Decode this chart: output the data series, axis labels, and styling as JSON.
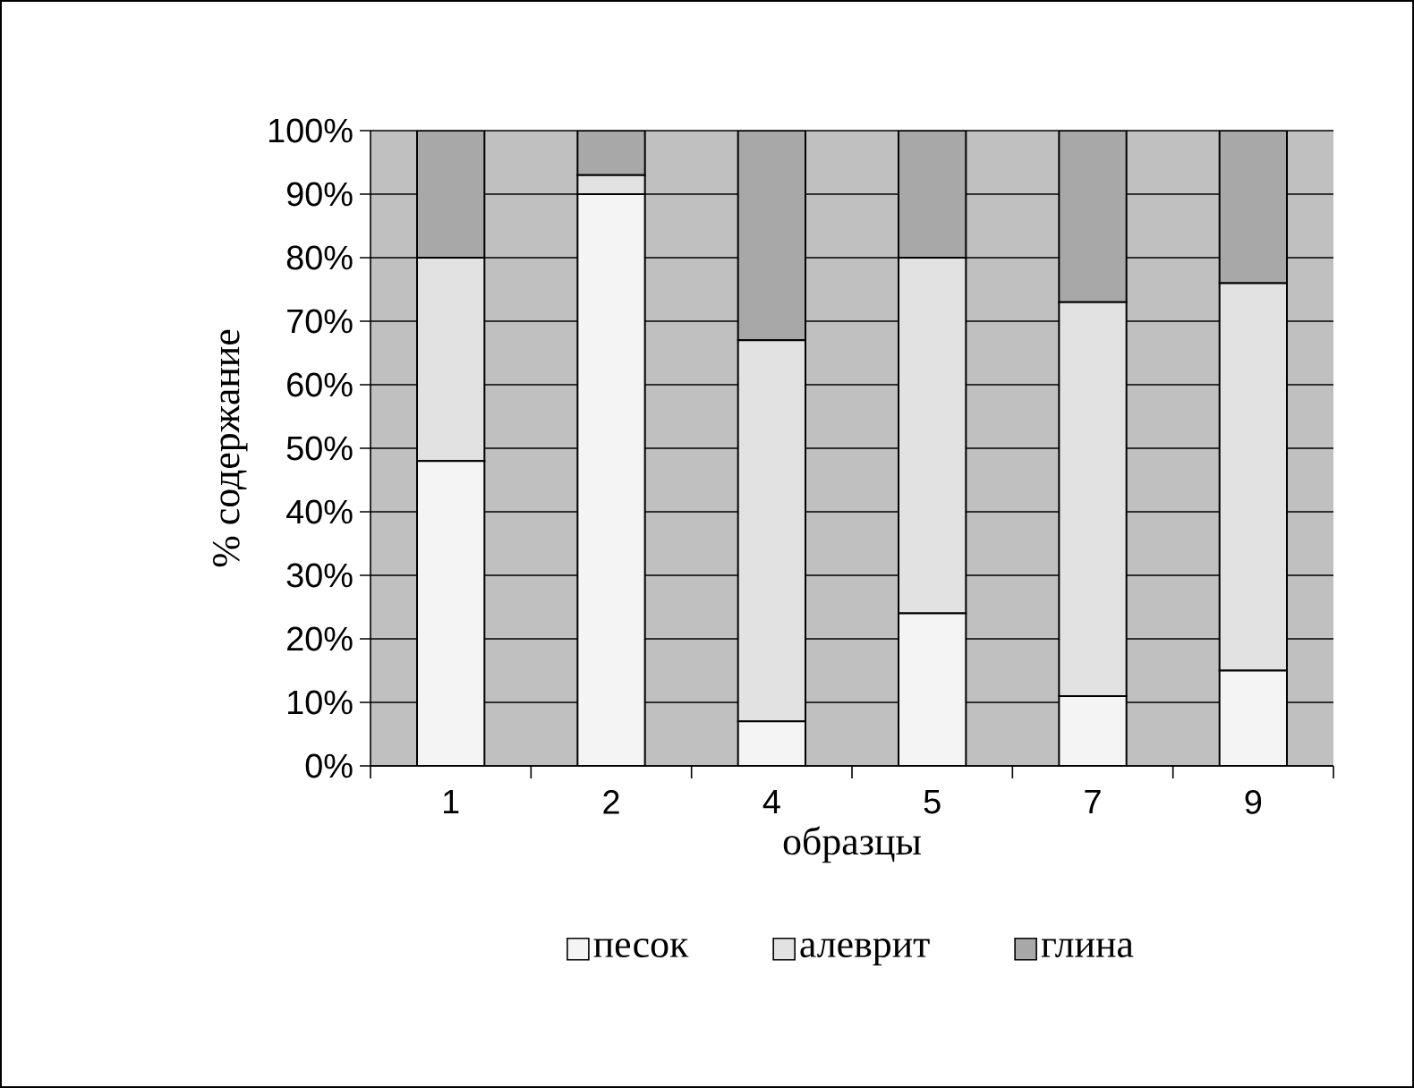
{
  "chart_data": {
    "type": "bar",
    "stacked": true,
    "xlabel": "образцы",
    "ylabel": "% содержание",
    "categories": [
      "1",
      "2",
      "4",
      "5",
      "7",
      "9"
    ],
    "series": [
      {
        "name": "песок",
        "color": "#f4f4f4",
        "values": [
          48,
          90,
          7,
          24,
          11,
          15
        ]
      },
      {
        "name": "алеврит",
        "color": "#e2e2e2",
        "values": [
          32,
          3,
          60,
          56,
          62,
          61
        ]
      },
      {
        "name": "глина",
        "color": "#a8a8a8",
        "values": [
          20,
          7,
          33,
          20,
          27,
          24
        ]
      }
    ],
    "ylim": [
      0,
      100
    ],
    "yticks": [
      {
        "value": 0,
        "label": "0%"
      },
      {
        "value": 10,
        "label": "10%"
      },
      {
        "value": 20,
        "label": "20%"
      },
      {
        "value": 30,
        "label": "30%"
      },
      {
        "value": 40,
        "label": "40%"
      },
      {
        "value": 50,
        "label": "50%"
      },
      {
        "value": 60,
        "label": "60%"
      },
      {
        "value": 70,
        "label": "70%"
      },
      {
        "value": 80,
        "label": "80%"
      },
      {
        "value": 90,
        "label": "90%"
      },
      {
        "value": 100,
        "label": "100%"
      }
    ],
    "grid": "y",
    "legend": "bottom"
  }
}
